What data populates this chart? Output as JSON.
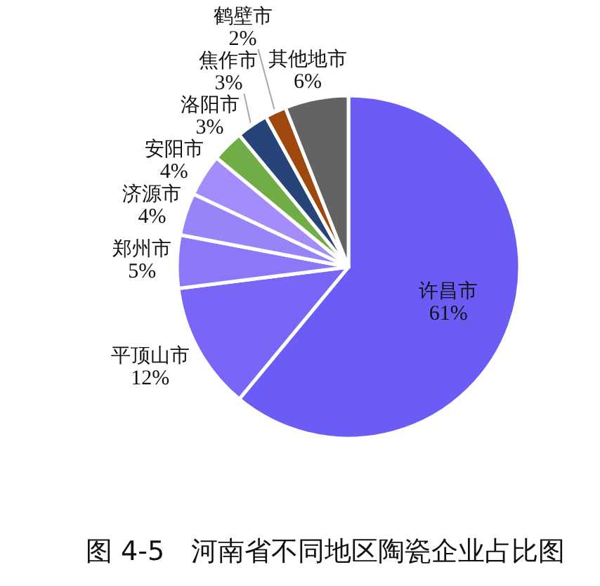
{
  "chart_data": {
    "type": "pie",
    "title": "图 4-5　河南省不同地区陶瓷企业占比图",
    "categories": [
      "许昌市",
      "平顶山市",
      "郑州市",
      "济源市",
      "安阳市",
      "洛阳市",
      "焦作市",
      "鹤壁市",
      "其他地市"
    ],
    "values": [
      61,
      12,
      5,
      4,
      4,
      3,
      3,
      2,
      6
    ],
    "value_labels": [
      "61%",
      "12%",
      "5%",
      "4%",
      "4%",
      "3%",
      "3%",
      "2%",
      "6%"
    ],
    "colors": [
      "#6c5cf6",
      "#7a66f6",
      "#8b78f8",
      "#9784f9",
      "#a48cfa",
      "#70ad47",
      "#264478",
      "#9e480e",
      "#636363"
    ]
  }
}
